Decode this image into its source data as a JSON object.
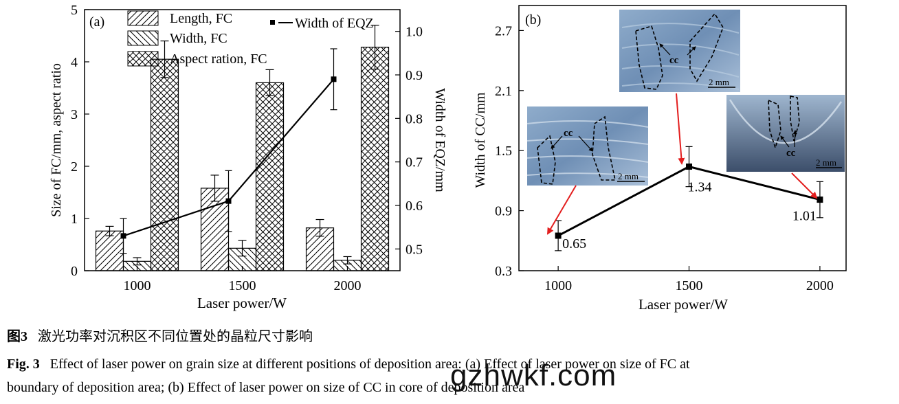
{
  "chart_data": [
    {
      "type": "bar",
      "panel_label": "(a)",
      "categories": [
        "1000",
        "1500",
        "2000"
      ],
      "xlabel": "Laser power/W",
      "ylabel": "Size of FC/mm, aspect ratio",
      "y2label": "Width of EQZ/mm",
      "ylim": [
        0,
        5
      ],
      "y2lim": [
        0.45,
        1.05
      ],
      "yticks": [
        0,
        1,
        2,
        3,
        4,
        5
      ],
      "y2ticks": [
        0.5,
        0.6,
        0.7,
        0.8,
        0.9,
        1.0
      ],
      "series": [
        {
          "name": "Length, FC",
          "values": [
            0.76,
            1.58,
            0.82
          ],
          "errors": [
            0.09,
            0.25,
            0.16
          ],
          "hatch": "forward"
        },
        {
          "name": "Width, FC",
          "values": [
            0.18,
            0.43,
            0.2
          ],
          "errors": [
            0.07,
            0.15,
            0.07
          ],
          "hatch": "backward"
        },
        {
          "name": "Aspect ration, FC",
          "values": [
            4.05,
            3.6,
            4.28
          ],
          "errors": [
            0.35,
            0.25,
            0.42
          ],
          "hatch": "cross"
        }
      ],
      "line_series": {
        "name": "Width of EQZ",
        "axis": "y2",
        "values": [
          0.53,
          0.61,
          0.89
        ],
        "errors": [
          0.04,
          0.07,
          0.07
        ]
      },
      "legend": "top"
    },
    {
      "type": "line",
      "panel_label": "(b)",
      "x": [
        1000,
        1500,
        2000
      ],
      "xticks": [
        "1000",
        "1500",
        "2000"
      ],
      "xlim": [
        850,
        2100
      ],
      "xlabel": "Laser power/W",
      "ylabel": "Width of CC/mm",
      "ylim": [
        0.3,
        2.95
      ],
      "yticks": [
        "0.3",
        "0.9",
        "1.5",
        "2.1",
        "2.7"
      ],
      "series": [
        {
          "values": [
            0.65,
            1.34,
            1.01
          ],
          "errors": [
            0.15,
            0.2,
            0.18
          ]
        }
      ],
      "point_labels": [
        "0.65",
        "1.34",
        "1.01"
      ],
      "inset_label": "cc",
      "inset_scale": "2 mm"
    }
  ],
  "caption": {
    "cn_label": "图3",
    "cn_text": "激光功率对沉积区不同位置处的晶粒尺寸影响",
    "en_label": "Fig. 3",
    "en_line1": "Effect of laser power on grain size at different positions of deposition area: (a) Effect of laser power on size of FC at",
    "en_line2": "boundary of deposition area; (b) Effect of laser power on size of CC in core of deposition area"
  },
  "watermark": "gzhwkf.com",
  "colors": {
    "arrow": "#e31e1e",
    "inset_bg": "#6f8fb5",
    "inset_dark": "#2d4466",
    "inset_light": "#b8cce0"
  }
}
